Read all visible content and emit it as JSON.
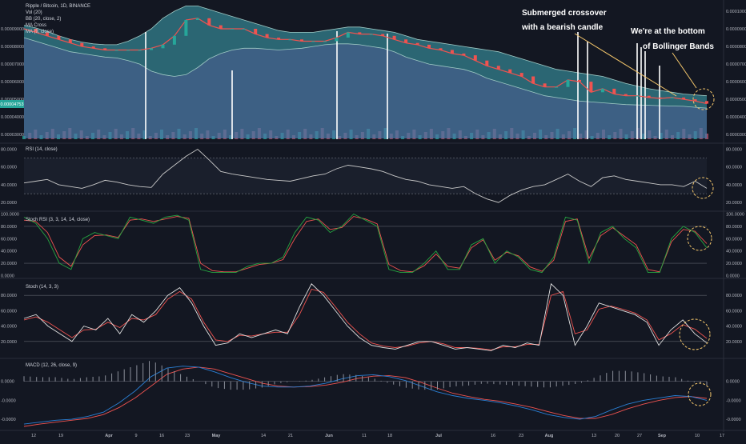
{
  "header": {
    "title": "Ripple / Bitcoin, 1D, BINANCE",
    "indicators": [
      "Vol (20)",
      "BB (20, close, 2)",
      "MA Cross",
      "MA (9, close)"
    ]
  },
  "annotations": {
    "crossover_line1": "Submerged crossover",
    "crossover_line2": "with a bearish candle",
    "bb_line1": "We're at the bottom",
    "bb_line2": "of Bollinger Bands"
  },
  "price_badge": "0.00004753",
  "x_axis": [
    "12",
    "19",
    "Apr",
    "9",
    "16",
    "23",
    "May",
    "14",
    "21",
    "Jun",
    "11",
    "18",
    "Jul",
    "16",
    "23",
    "Aug",
    "13",
    "20",
    "27",
    "Sep",
    "10",
    "17"
  ],
  "colors": {
    "background": "#131722",
    "bb_fill": "#4c7aa6",
    "candle_up": "#26a69a",
    "candle_down": "#ef5350",
    "rsi": "#c8c8c8",
    "stoch_k": "#26a641",
    "stoch_d": "#ef5350",
    "macd": "#2a7fd4",
    "signal": "#ef5350",
    "circle": "#f5c76b"
  },
  "chart_data": [
    {
      "type": "line",
      "title": "Ripple / Bitcoin, 1D, BINANCE",
      "y_ticks": [
        "0.00010000",
        "0.00009000",
        "0.00008000",
        "0.00007000",
        "0.00006000",
        "0.00005000",
        "0.00004000",
        "0.00003000"
      ],
      "ylim": [
        2.6e-05,
        0.000105
      ],
      "series": [
        {
          "name": "price",
          "values": [
            9e-05,
            8.8e-05,
            8.6e-05,
            8.4e-05,
            8.2e-05,
            8e-05,
            7.9e-05,
            7.8e-05,
            7.8e-05,
            7.8e-05,
            7.8e-05,
            7.9e-05,
            8.1e-05,
            8.6e-05,
            9.5e-05,
            9.6e-05,
            9.2e-05,
            9e-05,
            9e-05,
            9e-05,
            8.7e-05,
            8.5e-05,
            8.4e-05,
            8.4e-05,
            8.3e-05,
            8.3e-05,
            8.3e-05,
            8.5e-05,
            8.8e-05,
            8.7e-05,
            8.7e-05,
            8.6e-05,
            8.4e-05,
            8.2e-05,
            8.1e-05,
            7.9e-05,
            7.8e-05,
            7.6e-05,
            7.5e-05,
            7.2e-05,
            6.9e-05,
            6.7e-05,
            6.5e-05,
            6.3e-05,
            5.9e-05,
            5.7e-05,
            5.7e-05,
            6.1e-05,
            6e-05,
            5.4e-05,
            5.6e-05,
            5.3e-05,
            5.2e-05,
            5.2e-05,
            5.1e-05,
            5.05e-05,
            5.1e-05,
            5e-05,
            4.9e-05,
            4.75e-05
          ]
        },
        {
          "name": "bb_upper",
          "values": [
            9.2e-05,
            9.05e-05,
            8.85e-05,
            8.6e-05,
            8.4e-05,
            8.25e-05,
            8.15e-05,
            8.1e-05,
            8.1e-05,
            8.3e-05,
            8.6e-05,
            9e-05,
            9.6e-05,
            0.0001,
            0.000103,
            0.000103,
            0.000101,
            9.9e-05,
            9.7e-05,
            9.5e-05,
            9.3e-05,
            9.1e-05,
            8.9e-05,
            8.8e-05,
            8.8e-05,
            8.8e-05,
            8.9e-05,
            9e-05,
            9.1e-05,
            9.1e-05,
            9e-05,
            8.9e-05,
            8.8e-05,
            8.6e-05,
            8.4e-05,
            8.3e-05,
            8.2e-05,
            8.1e-05,
            8e-05,
            7.9e-05,
            7.8e-05,
            7.7e-05,
            7.5e-05,
            7.3e-05,
            7.1e-05,
            6.9e-05,
            6.7e-05,
            6.6e-05,
            6.5e-05,
            6.4e-05,
            6.3e-05,
            6.1e-05,
            5.9e-05,
            5.75e-05,
            5.6e-05,
            5.5e-05,
            5.4e-05,
            5.3e-05,
            5.25e-05,
            5.2e-05
          ]
        },
        {
          "name": "bb_lower",
          "values": [
            8.5e-05,
            8.3e-05,
            8.1e-05,
            7.9e-05,
            7.7e-05,
            7.6e-05,
            7.5e-05,
            7.4e-05,
            7.35e-05,
            7.2e-05,
            7e-05,
            6.6e-05,
            6.4e-05,
            6.3e-05,
            6.4e-05,
            6.8e-05,
            7.3e-05,
            7.6e-05,
            7.8e-05,
            7.9e-05,
            7.9e-05,
            7.85e-05,
            7.8e-05,
            7.85e-05,
            7.9e-05,
            8e-05,
            8.1e-05,
            8.15e-05,
            8.15e-05,
            8.1e-05,
            8e-05,
            7.9e-05,
            7.7e-05,
            7.4e-05,
            7.2e-05,
            7e-05,
            6.9e-05,
            6.8e-05,
            6.7e-05,
            6.5e-05,
            6.2e-05,
            6e-05,
            5.8e-05,
            5.6e-05,
            5.4e-05,
            5.2e-05,
            5.1e-05,
            5e-05,
            4.9e-05,
            4.85e-05,
            4.8e-05,
            4.75e-05,
            4.7e-05,
            4.68e-05,
            4.66e-05,
            4.64e-05,
            4.62e-05,
            4.6e-05,
            4.55e-05,
            4.5e-05
          ]
        }
      ]
    },
    {
      "type": "line",
      "title": "RSI (14, close)",
      "y_ticks": [
        "80.0000",
        "60.0000",
        "40.0000",
        "20.0000"
      ],
      "ylim": [
        12,
        85
      ],
      "series": [
        {
          "name": "RSI",
          "values": [
            42,
            44,
            46,
            40,
            38,
            36,
            40,
            45,
            43,
            40,
            38,
            37,
            52,
            62,
            72,
            80,
            68,
            55,
            52,
            50,
            48,
            46,
            45,
            44,
            47,
            50,
            52,
            58,
            62,
            60,
            58,
            55,
            50,
            46,
            44,
            40,
            38,
            36,
            38,
            30,
            24,
            20,
            28,
            34,
            38,
            40,
            46,
            52,
            44,
            38,
            48,
            50,
            46,
            44,
            42,
            40,
            40,
            38,
            44,
            36
          ]
        }
      ]
    },
    {
      "type": "line",
      "title": "Stoch RSI (3, 3, 14, 14, close)",
      "y_ticks": [
        "100.0000",
        "80.0000",
        "60.0000",
        "40.0000",
        "20.0000",
        "0.0000"
      ],
      "ylim": [
        -2,
        102
      ],
      "series": [
        {
          "name": "K",
          "values": [
            95,
            85,
            60,
            20,
            10,
            60,
            70,
            65,
            60,
            95,
            90,
            85,
            95,
            98,
            90,
            10,
            5,
            5,
            5,
            15,
            20,
            20,
            30,
            70,
            95,
            90,
            70,
            80,
            100,
            90,
            80,
            10,
            5,
            5,
            20,
            40,
            10,
            10,
            50,
            60,
            20,
            40,
            30,
            10,
            5,
            30,
            95,
            90,
            20,
            70,
            80,
            60,
            45,
            5,
            5,
            60,
            80,
            70,
            45
          ]
        },
        {
          "name": "D",
          "values": [
            90,
            88,
            70,
            30,
            15,
            50,
            65,
            66,
            62,
            90,
            92,
            88,
            92,
            96,
            93,
            20,
            8,
            6,
            6,
            12,
            18,
            20,
            26,
            60,
            88,
            92,
            75,
            78,
            96,
            92,
            84,
            18,
            8,
            6,
            16,
            35,
            15,
            12,
            45,
            58,
            25,
            38,
            32,
            14,
            7,
            25,
            88,
            92,
            28,
            65,
            78,
            64,
            50,
            10,
            6,
            55,
            75,
            72,
            52
          ]
        }
      ]
    },
    {
      "type": "line",
      "title": "Stoch (14, 3, 3)",
      "y_ticks": [
        "80.0000",
        "60.0000",
        "40.0000",
        "20.0000"
      ],
      "ylim": [
        0,
        100
      ],
      "series": [
        {
          "name": "K",
          "values": [
            50,
            55,
            40,
            30,
            20,
            40,
            35,
            50,
            30,
            55,
            45,
            60,
            80,
            90,
            70,
            40,
            15,
            18,
            30,
            25,
            30,
            35,
            30,
            65,
            95,
            80,
            60,
            40,
            25,
            15,
            12,
            10,
            15,
            20,
            20,
            15,
            10,
            12,
            10,
            8,
            15,
            12,
            18,
            15,
            95,
            80,
            15,
            40,
            70,
            65,
            60,
            55,
            45,
            15,
            35,
            48,
            30,
            18
          ]
        },
        {
          "name": "D",
          "values": [
            48,
            52,
            45,
            35,
            25,
            35,
            36,
            45,
            38,
            50,
            48,
            55,
            75,
            85,
            75,
            45,
            22,
            20,
            28,
            27,
            30,
            32,
            32,
            55,
            88,
            84,
            65,
            45,
            30,
            18,
            14,
            12,
            14,
            18,
            20,
            17,
            12,
            12,
            11,
            9,
            13,
            13,
            16,
            16,
            80,
            85,
            30,
            35,
            62,
            66,
            62,
            57,
            48,
            22,
            30,
            42,
            36,
            24
          ]
        }
      ]
    },
    {
      "type": "line",
      "title": "MACD (12, 26, close, 9)",
      "y_ticks": [
        "0.0000",
        "-0.0000",
        "-0.0000"
      ],
      "ylim": [
        -1.0,
        0.45
      ],
      "series": [
        {
          "name": "MACD",
          "values": [
            -0.9,
            -0.86,
            -0.82,
            -0.8,
            -0.74,
            -0.65,
            -0.45,
            -0.2,
            0.1,
            0.28,
            0.32,
            0.3,
            0.2,
            0.08,
            -0.02,
            -0.1,
            -0.12,
            -0.12,
            -0.1,
            -0.04,
            0.05,
            0.12,
            0.14,
            0.1,
            0.02,
            -0.1,
            -0.22,
            -0.3,
            -0.36,
            -0.4,
            -0.45,
            -0.52,
            -0.6,
            -0.7,
            -0.76,
            -0.8,
            -0.74,
            -0.6,
            -0.48,
            -0.4,
            -0.35,
            -0.3,
            -0.32,
            -0.4
          ]
        },
        {
          "name": "Signal",
          "values": [
            -0.95,
            -0.9,
            -0.86,
            -0.82,
            -0.78,
            -0.7,
            -0.55,
            -0.35,
            -0.1,
            0.15,
            0.26,
            0.3,
            0.26,
            0.16,
            0.06,
            -0.04,
            -0.1,
            -0.12,
            -0.11,
            -0.08,
            -0.02,
            0.06,
            0.11,
            0.12,
            0.08,
            -0.02,
            -0.14,
            -0.25,
            -0.32,
            -0.38,
            -0.42,
            -0.48,
            -0.55,
            -0.64,
            -0.72,
            -0.78,
            -0.78,
            -0.7,
            -0.58,
            -0.48,
            -0.4,
            -0.34,
            -0.32,
            -0.36
          ]
        }
      ]
    }
  ]
}
